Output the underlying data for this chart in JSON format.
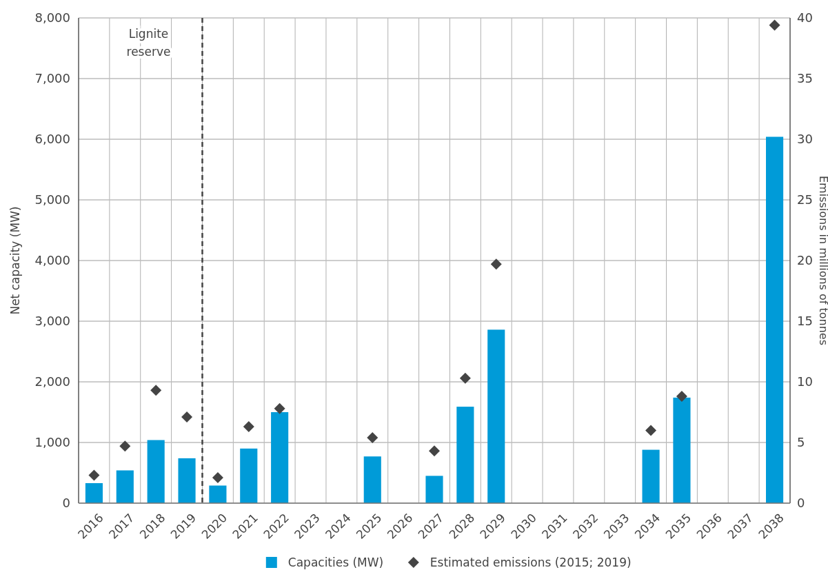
{
  "chart_data": {
    "type": "bar",
    "categories": [
      "2016",
      "2017",
      "2018",
      "2019",
      "2020",
      "2021",
      "2022",
      "2023",
      "2024",
      "2025",
      "2026",
      "2027",
      "2028",
      "2029",
      "2030",
      "2031",
      "2032",
      "2033",
      "2034",
      "2035",
      "2036",
      "2037",
      "2038"
    ],
    "series": [
      {
        "name": "Capacities (MW)",
        "color": "#009bd8",
        "values": [
          330,
          540,
          1040,
          740,
          290,
          900,
          1500,
          null,
          null,
          770,
          null,
          450,
          1590,
          2860,
          null,
          null,
          null,
          null,
          880,
          1740,
          null,
          null,
          6040
        ]
      },
      {
        "name": "Estimated emissions (2015; 2019)",
        "type": "scatter",
        "axis": "y2",
        "color": "#444444",
        "marker": "diamond",
        "values": [
          2.3,
          4.7,
          9.3,
          7.1,
          2.1,
          6.3,
          7.8,
          null,
          null,
          5.4,
          null,
          4.3,
          10.3,
          19.7,
          null,
          null,
          null,
          null,
          6.0,
          8.8,
          null,
          null,
          39.4
        ]
      }
    ],
    "ylabel": "Net capacity (MW)",
    "y2label": "Emissions in millions of tonnes",
    "ylim": [
      0,
      8000
    ],
    "yticks": [
      {
        "value": 0,
        "label": "0"
      },
      {
        "value": 1000,
        "label": "1,000"
      },
      {
        "value": 2000,
        "label": "2,000"
      },
      {
        "value": 3000,
        "label": "3,000"
      },
      {
        "value": 4000,
        "label": "4,000"
      },
      {
        "value": 5000,
        "label": "5,000"
      },
      {
        "value": 6000,
        "label": "6,000"
      },
      {
        "value": 7000,
        "label": "7,000"
      },
      {
        "value": 8000,
        "label": "8,000"
      }
    ],
    "y2lim": [
      0,
      40
    ],
    "y2ticks": [
      0,
      5,
      10,
      15,
      20,
      25,
      30,
      35,
      40
    ],
    "ref_lines": [
      {
        "axis": "x",
        "value": "2020",
        "label": "Lignite reserve",
        "color": "#444444",
        "line_style": "dashed"
      }
    ],
    "grid": true,
    "legend": "bottom"
  }
}
